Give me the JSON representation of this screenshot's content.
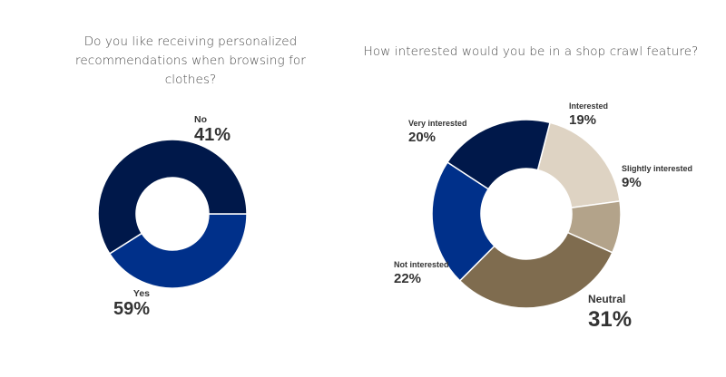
{
  "chart_data": [
    {
      "type": "pie",
      "style": "donut",
      "title_lines": [
        "Do you like receiving personalized",
        "recommendations when browsing for clothes?"
      ],
      "slices": [
        {
          "label": "No",
          "value": 41,
          "value_label": "41%",
          "color": "#00308a"
        },
        {
          "label": "Yes",
          "value": 59,
          "value_label": "59%",
          "color": "#00184a"
        }
      ]
    },
    {
      "type": "pie",
      "style": "donut",
      "title_lines": [
        "How interested would you be in a shop crawl feature?"
      ],
      "slices": [
        {
          "label": "Interested",
          "value": 19,
          "value_label": "19%",
          "color": "#ded3c3"
        },
        {
          "label": "Slightly interested",
          "value": 9,
          "value_label": "9%",
          "color": "#b3a38a"
        },
        {
          "label": "Neutral",
          "value": 31,
          "value_label": "31%",
          "color": "#7f6c4f"
        },
        {
          "label": "Not interested",
          "value": 22,
          "value_label": "22%",
          "color": "#00308a"
        },
        {
          "label": "Very interested",
          "value": 20,
          "value_label": "20%",
          "color": "#00184a"
        }
      ]
    }
  ]
}
